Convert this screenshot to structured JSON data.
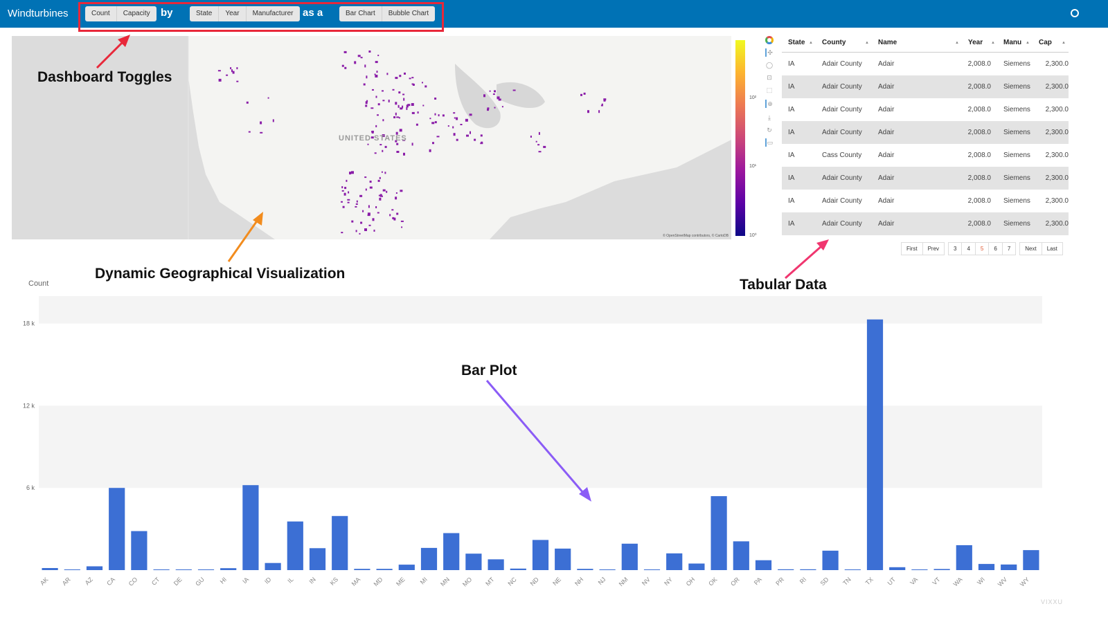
{
  "header": {
    "title": "Windturbines",
    "metric_toggle": [
      "Count",
      "Capacity"
    ],
    "by_label": "by",
    "group_toggle": [
      "State",
      "Year",
      "Manufacturer"
    ],
    "as_label": "as a",
    "chart_toggle": [
      "Bar Chart",
      "Bubble Chart"
    ]
  },
  "map": {
    "country_label": "UNITED STATES",
    "attribution": "© OpenStreetMap contributors, © CartoDB",
    "colorbar_ticks": [
      "10²",
      "10¹",
      "10⁰"
    ],
    "colormap": [
      "#f0f921",
      "#fdb42f",
      "#ed7953",
      "#cc4778",
      "#9c179e",
      "#5c01a6",
      "#0d0887"
    ],
    "point_color": "#8a1da8"
  },
  "toolbar": {
    "tools": [
      "bokeh-logo-icon",
      "pan-icon",
      "lasso-icon",
      "box-zoom-icon",
      "box-select-icon",
      "wheel-zoom-icon",
      "save-icon",
      "reset-icon",
      "hover-icon"
    ]
  },
  "table": {
    "columns": [
      "State",
      "County",
      "Name",
      "Year",
      "Manu",
      "Cap"
    ],
    "rows": [
      [
        "IA",
        "Adair County",
        "Adair",
        "2,008.0",
        "Siemens",
        "2,300.0"
      ],
      [
        "IA",
        "Adair County",
        "Adair",
        "2,008.0",
        "Siemens",
        "2,300.0"
      ],
      [
        "IA",
        "Adair County",
        "Adair",
        "2,008.0",
        "Siemens",
        "2,300.0"
      ],
      [
        "IA",
        "Adair County",
        "Adair",
        "2,008.0",
        "Siemens",
        "2,300.0"
      ],
      [
        "IA",
        "Cass County",
        "Adair",
        "2,008.0",
        "Siemens",
        "2,300.0"
      ],
      [
        "IA",
        "Adair County",
        "Adair",
        "2,008.0",
        "Siemens",
        "2,300.0"
      ],
      [
        "IA",
        "Adair County",
        "Adair",
        "2,008.0",
        "Siemens",
        "2,300.0"
      ],
      [
        "IA",
        "Adair County",
        "Adair",
        "2,008.0",
        "Siemens",
        "2,300.0"
      ]
    ],
    "pager": {
      "first": "First",
      "prev": "Prev",
      "pages": [
        "3",
        "4",
        "5",
        "6",
        "7"
      ],
      "current": "5",
      "next": "Next",
      "last": "Last"
    }
  },
  "annotations": {
    "toggles": "Dashboard Toggles",
    "geo": "Dynamic Geographical Visualization",
    "table": "Tabular Data",
    "bar": "Bar Plot",
    "colors": {
      "toggles": "#e8283a",
      "geo": "#f28c1e",
      "table": "#f0366f",
      "bar": "#8b5cf6"
    }
  },
  "chart_data": {
    "type": "bar",
    "title": "",
    "xlabel": "",
    "ylabel": "Count",
    "ylim": [
      0,
      20000
    ],
    "yticks": [
      6000,
      12000,
      18000
    ],
    "ytick_labels": [
      "6 k",
      "12 k",
      "18 k"
    ],
    "bar_color": "#3c6fd4",
    "categories": [
      "AK",
      "AR",
      "AZ",
      "CA",
      "CO",
      "CT",
      "DE",
      "GU",
      "HI",
      "IA",
      "ID",
      "IL",
      "IN",
      "KS",
      "MA",
      "MD",
      "ME",
      "MI",
      "MN",
      "MO",
      "MT",
      "NC",
      "ND",
      "NE",
      "NH",
      "NJ",
      "NM",
      "NV",
      "NY",
      "OH",
      "OK",
      "OR",
      "PA",
      "PR",
      "RI",
      "SD",
      "TN",
      "TX",
      "UT",
      "VA",
      "VT",
      "WA",
      "WI",
      "WV",
      "WY"
    ],
    "values": [
      150,
      5,
      280,
      6000,
      2850,
      10,
      10,
      10,
      140,
      6200,
      520,
      3550,
      1600,
      3950,
      90,
      90,
      400,
      1620,
      2700,
      1200,
      790,
      110,
      2200,
      1570,
      90,
      10,
      1930,
      10,
      1220,
      480,
      5400,
      2100,
      720,
      60,
      60,
      1420,
      10,
      18300,
      210,
      5,
      80,
      1820,
      450,
      410,
      1460
    ]
  },
  "watermark": "VIXXU"
}
